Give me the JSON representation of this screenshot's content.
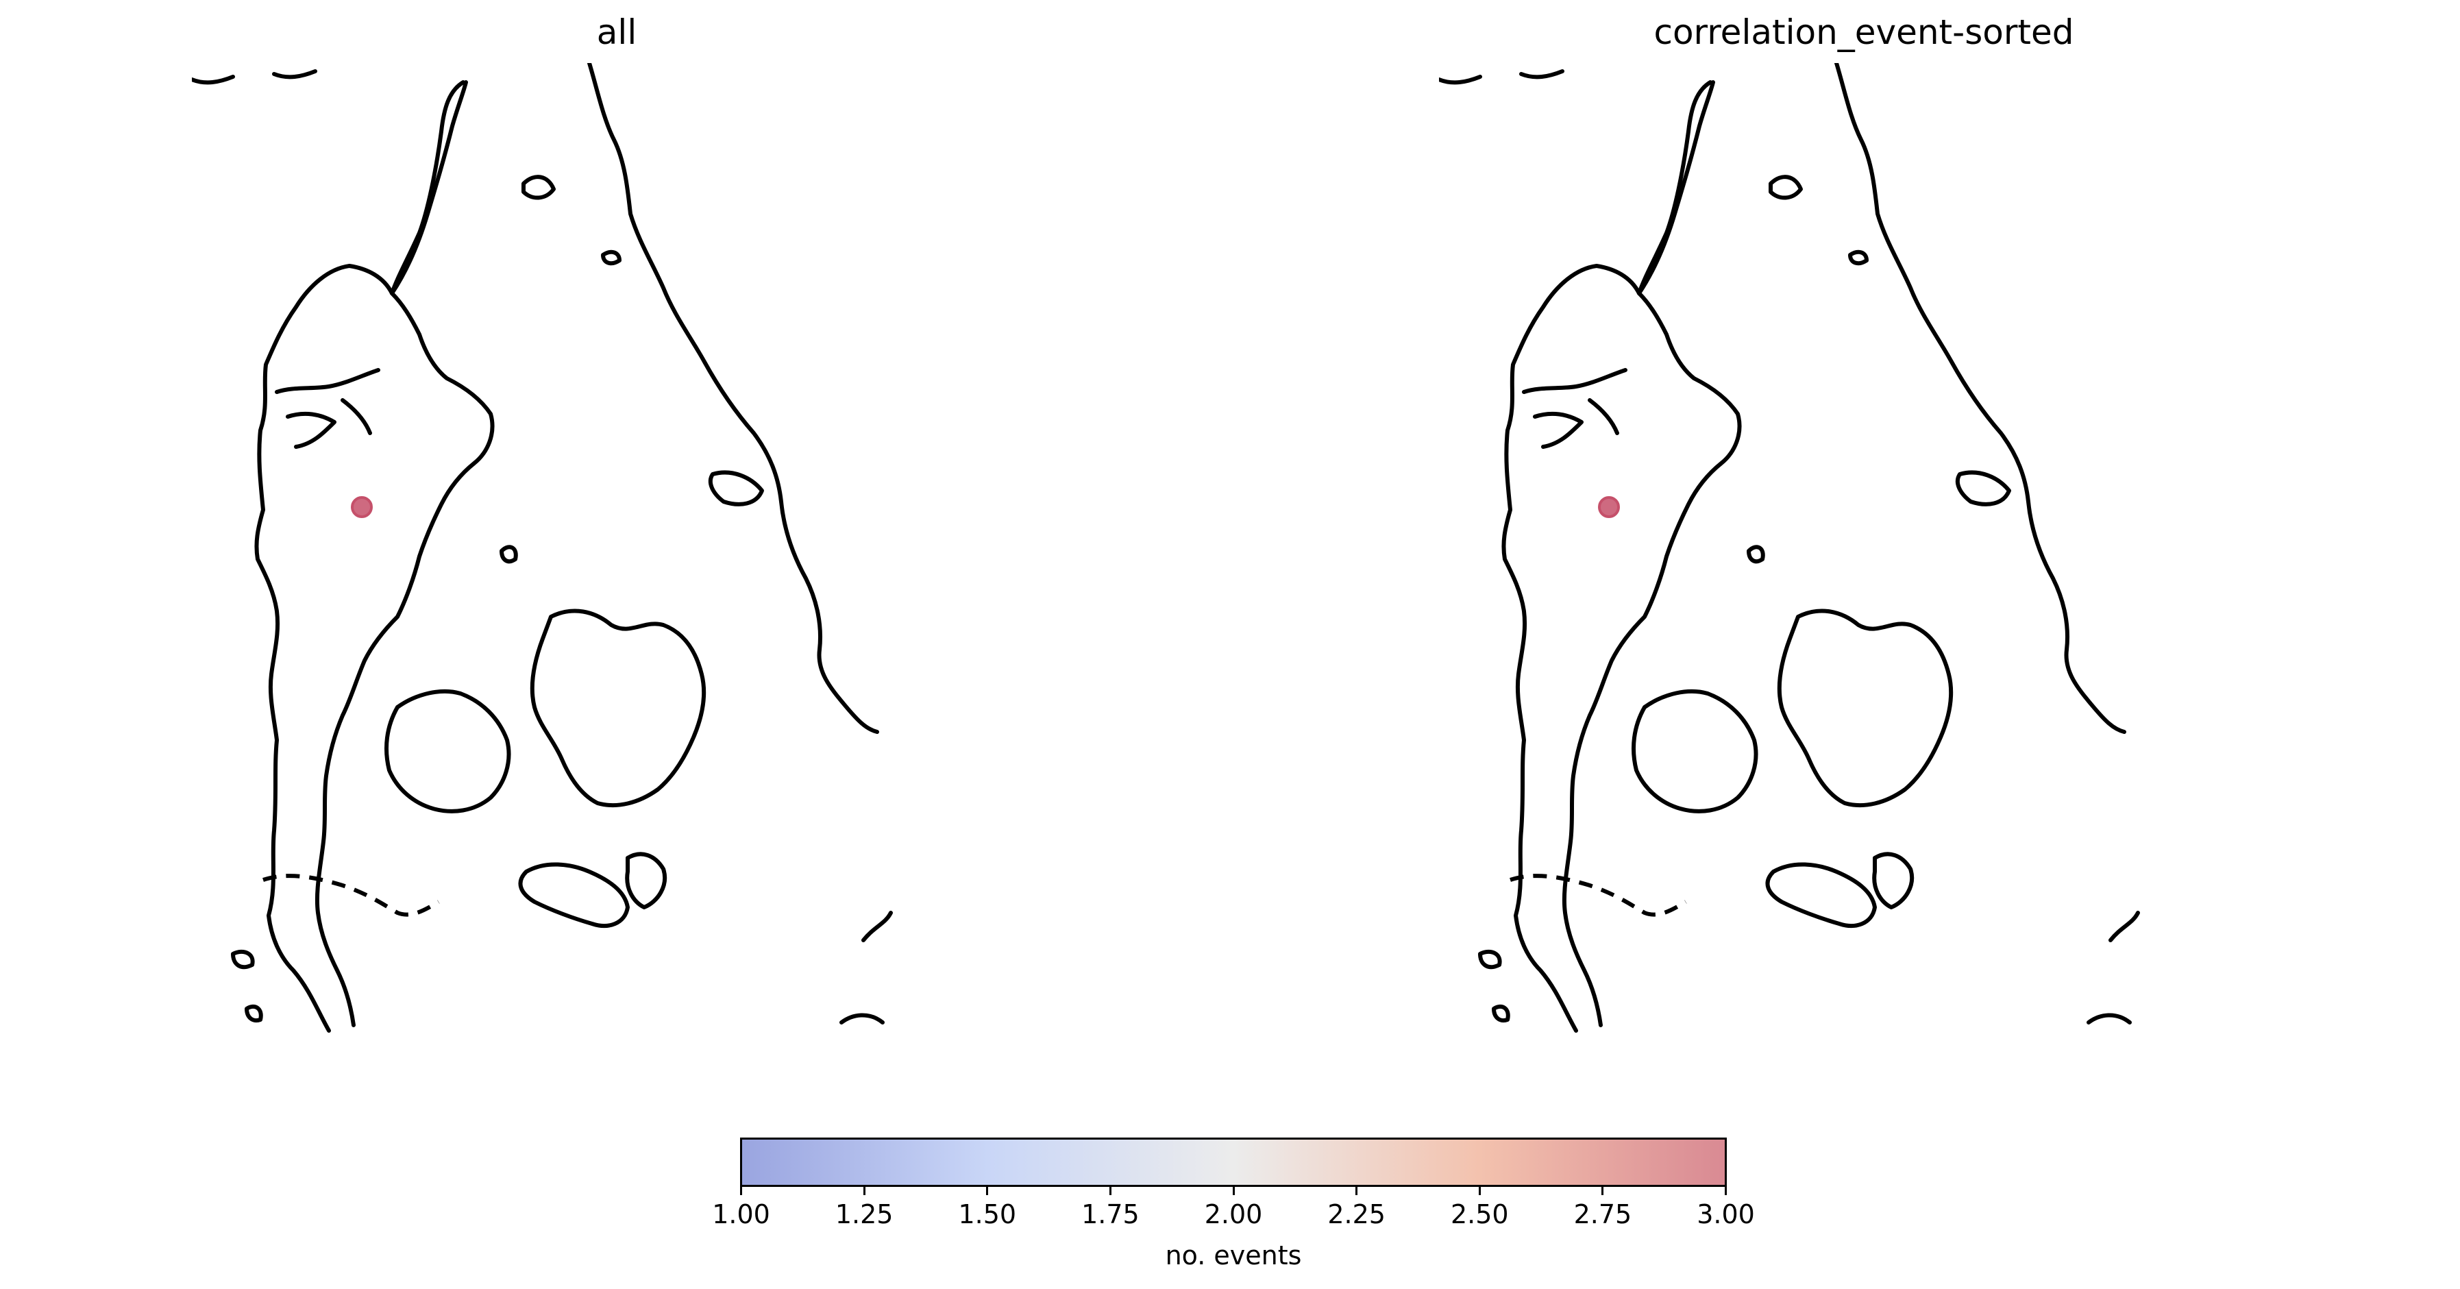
{
  "panels": [
    {
      "title": "all"
    },
    {
      "title": "correlation_event-sorted"
    }
  ],
  "event_marker": {
    "value": 3.0,
    "color": "#c5506a"
  },
  "colorbar": {
    "label": "no. events",
    "cmap": "coolwarm",
    "range": [
      1.0,
      3.0
    ],
    "ticks": [
      "1.00",
      "1.25",
      "1.50",
      "1.75",
      "2.00",
      "2.25",
      "2.50",
      "2.75",
      "3.00"
    ],
    "colors": [
      "#9aa5e0",
      "#c9d6f7",
      "#ececec",
      "#f3c2ae",
      "#d98a93"
    ]
  }
}
